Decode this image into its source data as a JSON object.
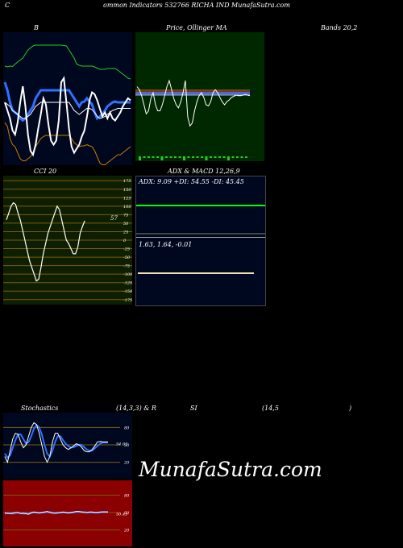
{
  "header": {
    "c_letter": "C",
    "title": "ommon  Indicators 532766  RICHA IND MunafaSutra.com"
  },
  "labels": {
    "bb": "B",
    "price_ma": "Price, Ollinger MA",
    "bands": "Bands 20,2",
    "cci": "CCI 20",
    "adx_title": "ADX  & MACD 12,26,9",
    "adx_values": "ADX: 9.09  +DI: 54.55  -DI: 45.45",
    "macd_values": "1.63,  1.64,  -0.01",
    "stoch_title": "Stochastics",
    "stoch_params": "(14,3,3) & R",
    "rsi_title": "SI",
    "rsi_params": "(14,5",
    "rsi_close": ")",
    "watermark": "MunafaSutra.com"
  },
  "colors": {
    "bb_bg": "#000820",
    "price_bg": "#002800",
    "cci_bg": "#0e1f00",
    "adx_bg": "#000820",
    "stoch_bg": "#000820",
    "rsi_bg": "#8b0000",
    "blue": "#3070ff",
    "green": "#22cc22",
    "orange": "#cc7a00",
    "white": "#ffffff",
    "grid_brown": "#7a5a10",
    "adx_green": "#00ff00"
  },
  "chart_data": [
    {
      "type": "line",
      "name": "bollinger-bands",
      "x": [
        0,
        1,
        2,
        3,
        4,
        5,
        6,
        7,
        8,
        9,
        10,
        11,
        12,
        13,
        14,
        15,
        16,
        17,
        18,
        19,
        20,
        21,
        22,
        23,
        24,
        25,
        26,
        27,
        28,
        29,
        30,
        31,
        32,
        33,
        34,
        35,
        36,
        37,
        38,
        39,
        40,
        41,
        42,
        43,
        44,
        45,
        46,
        47,
        48,
        49
      ],
      "series": [
        {
          "values": [
            60,
            62,
            60,
            61,
            55,
            50,
            45,
            40,
            30,
            20,
            15,
            10,
            8,
            8,
            8,
            8,
            8,
            8,
            8,
            8,
            8,
            8,
            8,
            9,
            10,
            20,
            30,
            40,
            55,
            58,
            60,
            60,
            60,
            60,
            60,
            62,
            65,
            68,
            68,
            68,
            66,
            66,
            66,
            66,
            70,
            75,
            80,
            85,
            90,
            92
          ]
        },
        {
          "values": [
            100,
            120,
            150,
            170,
            175,
            180,
            190,
            195,
            190,
            180,
            170,
            160,
            140,
            130,
            120,
            120,
            120,
            120,
            120,
            120,
            120,
            120,
            120,
            120,
            120,
            120,
            130,
            140,
            150,
            160,
            150,
            148,
            140,
            148,
            155,
            175,
            190,
            185,
            180,
            170,
            160,
            155,
            150,
            148,
            150,
            150,
            150,
            150,
            150,
            150
          ]
        },
        {
          "values": [
            200,
            210,
            240,
            255,
            260,
            275,
            290,
            295,
            295,
            290,
            285,
            275,
            260,
            250,
            240,
            235,
            232,
            232,
            232,
            232,
            232,
            232,
            232,
            232,
            232,
            232,
            240,
            250,
            255,
            260,
            258,
            258,
            255,
            258,
            260,
            270,
            285,
            300,
            305,
            305,
            300,
            295,
            290,
            285,
            280,
            280,
            275,
            270,
            265,
            260
          ]
        },
        {
          "values": [
            150,
            170,
            190,
            220,
            230,
            200,
            150,
            110,
            160,
            230,
            270,
            280,
            255,
            215,
            180,
            140,
            155,
            205,
            245,
            255,
            245,
            195,
            100,
            90,
            150,
            215,
            260,
            275,
            265,
            255,
            235,
            220,
            185,
            145,
            125,
            130,
            145,
            165,
            185,
            175,
            190,
            175,
            190,
            195,
            185,
            175,
            160,
            150,
            140,
            145
          ]
        },
        {
          "values": [
            150,
            155,
            160,
            170,
            175,
            180,
            185,
            190,
            190,
            185,
            180,
            170,
            160,
            155,
            150,
            150,
            150,
            150,
            150,
            150,
            150,
            150,
            150,
            150,
            150,
            150,
            160,
            170,
            175,
            180,
            175,
            170,
            165,
            165,
            168,
            175,
            185,
            190,
            188,
            185,
            180,
            175,
            170,
            168,
            165,
            165,
            165,
            165,
            165,
            165
          ]
        }
      ]
    },
    {
      "type": "line",
      "name": "price-ma",
      "x": [
        0,
        1,
        2,
        3,
        4,
        5,
        6,
        7,
        8,
        9,
        10,
        11,
        12,
        13,
        14,
        15,
        16,
        17,
        18,
        19,
        20,
        21,
        22,
        23,
        24,
        25,
        26,
        27,
        28,
        29,
        30,
        31,
        32,
        33,
        34,
        35,
        36,
        37,
        38,
        39,
        40,
        41,
        42,
        43,
        44,
        45,
        46,
        47,
        48,
        49
      ],
      "series": [
        {
          "values": [
            100,
            100,
            100,
            100,
            100,
            100,
            100,
            100,
            100,
            100,
            100,
            100,
            100,
            100,
            100,
            100,
            100,
            100,
            100,
            100,
            100,
            100,
            100,
            100,
            100,
            100,
            100,
            100,
            100,
            100,
            100,
            100,
            100,
            100,
            100,
            100,
            100,
            100,
            100,
            100,
            100,
            100,
            100,
            100,
            100,
            100,
            100,
            100,
            100,
            100
          ]
        },
        {
          "values": [
            90,
            95,
            105,
            120,
            135,
            130,
            110,
            100,
            120,
            130,
            130,
            120,
            105,
            90,
            80,
            95,
            110,
            120,
            125,
            115,
            100,
            80,
            140,
            155,
            150,
            130,
            115,
            105,
            100,
            108,
            120,
            122,
            115,
            100,
            95,
            100,
            108,
            115,
            120,
            115,
            112,
            108,
            106,
            104,
            105,
            105,
            104,
            103,
            104,
            105
          ]
        }
      ]
    },
    {
      "type": "line",
      "name": "cci-20",
      "x": [
        0,
        1,
        2,
        3,
        4,
        5,
        6,
        7,
        8,
        9,
        10,
        11,
        12,
        13,
        14,
        15,
        16,
        17,
        18,
        19,
        20,
        21,
        22,
        23,
        24,
        25,
        26,
        27,
        28,
        29,
        30,
        31,
        32,
        33,
        34,
        35,
        36,
        37,
        38,
        39,
        40,
        41,
        42,
        43,
        44,
        45,
        46,
        47,
        48,
        49
      ],
      "yticks": [
        175,
        150,
        125,
        100,
        75,
        50,
        25,
        0,
        -25,
        -50,
        -75,
        -100,
        -125,
        -150,
        -175
      ],
      "ylim": [
        -185,
        185
      ],
      "series": [
        {
          "values": [
            60,
            80,
            100,
            110,
            105,
            80,
            60,
            30,
            0,
            -30,
            -60,
            -80,
            -100,
            -120,
            -115,
            -80,
            -40,
            -10,
            20,
            40,
            60,
            80,
            100,
            90,
            60,
            30,
            0,
            -10,
            -25,
            -40,
            -40,
            -20,
            20,
            40,
            57,
            57,
            57,
            57,
            57,
            57,
            57,
            57,
            57,
            57,
            57,
            57,
            57,
            57,
            57,
            57
          ]
        }
      ],
      "last_label": "57"
    },
    {
      "type": "line",
      "name": "adx-macd",
      "series": [
        {
          "name": "ADX",
          "values": [
            9.09
          ]
        },
        {
          "name": "+DI",
          "values": [
            54.55
          ]
        },
        {
          "name": "-DI",
          "values": [
            45.45
          ]
        }
      ],
      "macd": [
        1.63,
        1.64,
        -0.01
      ]
    },
    {
      "type": "line",
      "name": "stochastics",
      "x": [
        0,
        1,
        2,
        3,
        4,
        5,
        6,
        7,
        8,
        9,
        10,
        11,
        12,
        13,
        14,
        15,
        16,
        17,
        18,
        19,
        20,
        21,
        22,
        23,
        24,
        25,
        26,
        27,
        28,
        29,
        30,
        31,
        32,
        33,
        34,
        35,
        36,
        37,
        38,
        39
      ],
      "yticks": [
        80,
        50,
        20
      ],
      "ylim": [
        0,
        100
      ],
      "series": [
        {
          "values": [
            30,
            20,
            40,
            60,
            70,
            68,
            55,
            45,
            50,
            65,
            80,
            88,
            85,
            70,
            50,
            30,
            20,
            30,
            55,
            70,
            70,
            60,
            50,
            45,
            42,
            45,
            48,
            52,
            50,
            46,
            40,
            38,
            38,
            42,
            48,
            55,
            56,
            55,
            55,
            55
          ]
        },
        {
          "values": [
            35,
            28,
            32,
            45,
            58,
            68,
            68,
            60,
            52,
            55,
            65,
            78,
            84,
            80,
            68,
            50,
            35,
            30,
            40,
            55,
            65,
            65,
            58,
            52,
            48,
            45,
            46,
            48,
            50,
            50,
            46,
            42,
            40,
            40,
            44,
            48,
            52,
            54,
            54,
            54
          ]
        }
      ],
      "last_label": "54.63"
    },
    {
      "type": "line",
      "name": "rsi",
      "x": [
        0,
        1,
        2,
        3,
        4,
        5,
        6,
        7,
        8,
        9,
        10,
        11,
        12,
        13,
        14,
        15,
        16,
        17,
        18,
        19,
        20,
        21,
        22,
        23,
        24,
        25,
        26,
        27,
        28,
        29,
        30,
        31,
        32,
        33,
        34,
        35,
        36,
        37,
        38,
        39
      ],
      "yticks": [
        80,
        50,
        20
      ],
      "ylim": [
        0,
        100
      ],
      "series": [
        {
          "values": [
            49,
            49,
            48,
            49,
            50,
            50,
            48,
            49,
            48,
            47,
            50,
            51,
            50,
            49,
            50,
            51,
            52,
            50,
            49,
            49,
            50,
            50,
            51,
            50,
            49,
            50,
            51,
            52,
            52,
            51,
            50,
            50,
            51,
            51,
            50,
            50,
            51,
            51,
            51,
            51
          ]
        },
        {
          "values": [
            48,
            49,
            49,
            48,
            49,
            50,
            49,
            48,
            48,
            48,
            49,
            50,
            50,
            50,
            50,
            50,
            51,
            51,
            50,
            49,
            49,
            50,
            50,
            50,
            50,
            50,
            50,
            51,
            51,
            51,
            51,
            50,
            50,
            50,
            50,
            50,
            50,
            51,
            51,
            51
          ]
        }
      ],
      "last_label": "50.45"
    }
  ]
}
